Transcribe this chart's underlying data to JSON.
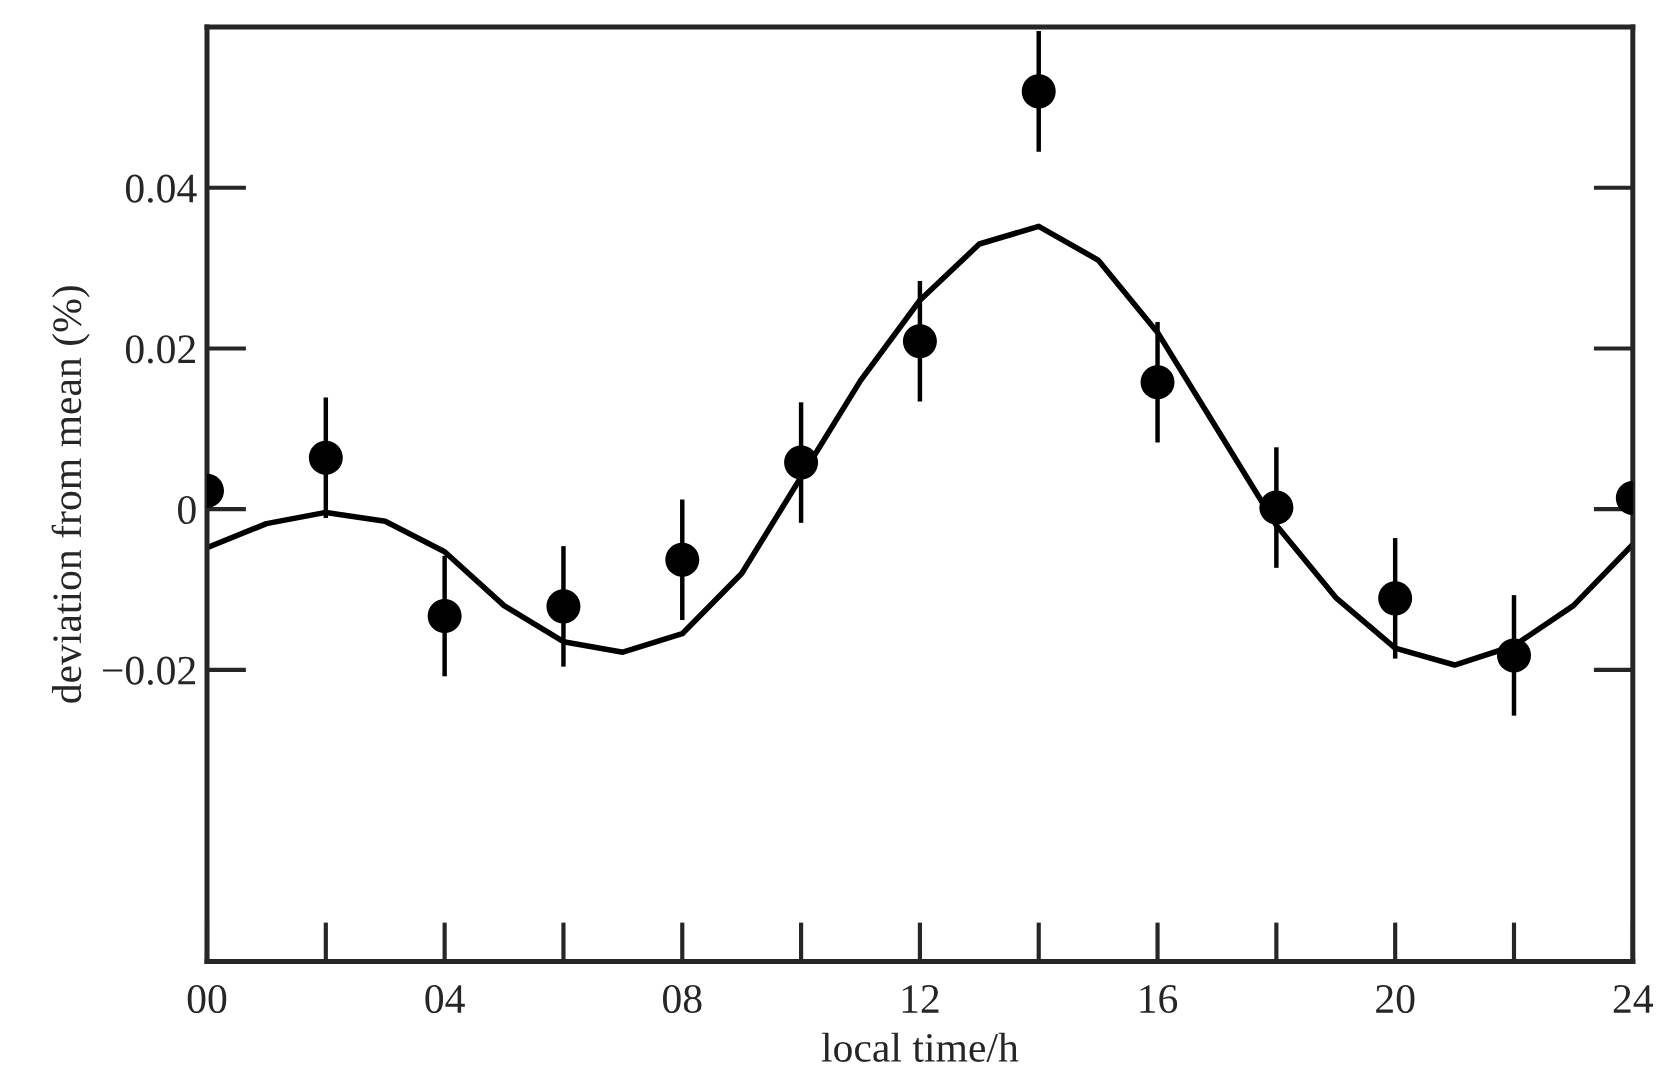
{
  "chart_data": {
    "type": "scatter",
    "xlabel": "local time/h",
    "ylabel": "deviation from mean (%)",
    "xlim": [
      0,
      24
    ],
    "ylim": [
      -0.0563,
      0.06
    ],
    "xticks": [
      {
        "value": 0,
        "label": "00"
      },
      {
        "value": 4,
        "label": "04"
      },
      {
        "value": 8,
        "label": "08"
      },
      {
        "value": 12,
        "label": "12"
      },
      {
        "value": 16,
        "label": "16"
      },
      {
        "value": 20,
        "label": "20"
      },
      {
        "value": 24,
        "label": "24"
      }
    ],
    "yticks": [
      {
        "value": -0.02,
        "label": "−0.02"
      },
      0,
      0.02,
      0.04
    ],
    "grid": false,
    "legend": false,
    "marker": "circle",
    "series": [
      {
        "type": "scatter",
        "color": "#000000",
        "x": [
          0,
          2,
          4,
          6,
          8,
          10,
          12,
          14,
          16,
          18,
          20,
          22,
          24
        ],
        "values": [
          0.0023,
          0.0064,
          -0.0133,
          -0.0121,
          -0.0063,
          0.0058,
          0.0209,
          0.052,
          0.0158,
          0.0002,
          -0.0111,
          -0.0182,
          0.0014
        ],
        "errors": [
          null,
          0.0075,
          0.0075,
          0.0075,
          0.0075,
          0.0075,
          0.0075,
          0.0075,
          0.0075,
          0.0075,
          0.0075,
          0.0075,
          null
        ]
      },
      {
        "type": "line",
        "color": "#000000",
        "line_style": "solid",
        "marker": "none",
        "x": [
          0,
          1,
          2,
          3,
          4,
          5,
          6,
          7,
          8,
          9,
          10,
          11,
          12,
          13,
          14,
          15,
          16,
          17,
          18,
          19,
          20,
          21,
          22,
          23,
          24
        ],
        "values": [
          -0.0048,
          -0.0018,
          -0.0004,
          -0.0015,
          -0.0053,
          -0.012,
          -0.0165,
          -0.0178,
          -0.0155,
          -0.008,
          0.004,
          0.016,
          0.026,
          0.033,
          0.0352,
          0.031,
          0.022,
          0.01,
          -0.002,
          -0.011,
          -0.0173,
          -0.0194,
          -0.017,
          -0.012,
          -0.0044
        ]
      }
    ]
  }
}
